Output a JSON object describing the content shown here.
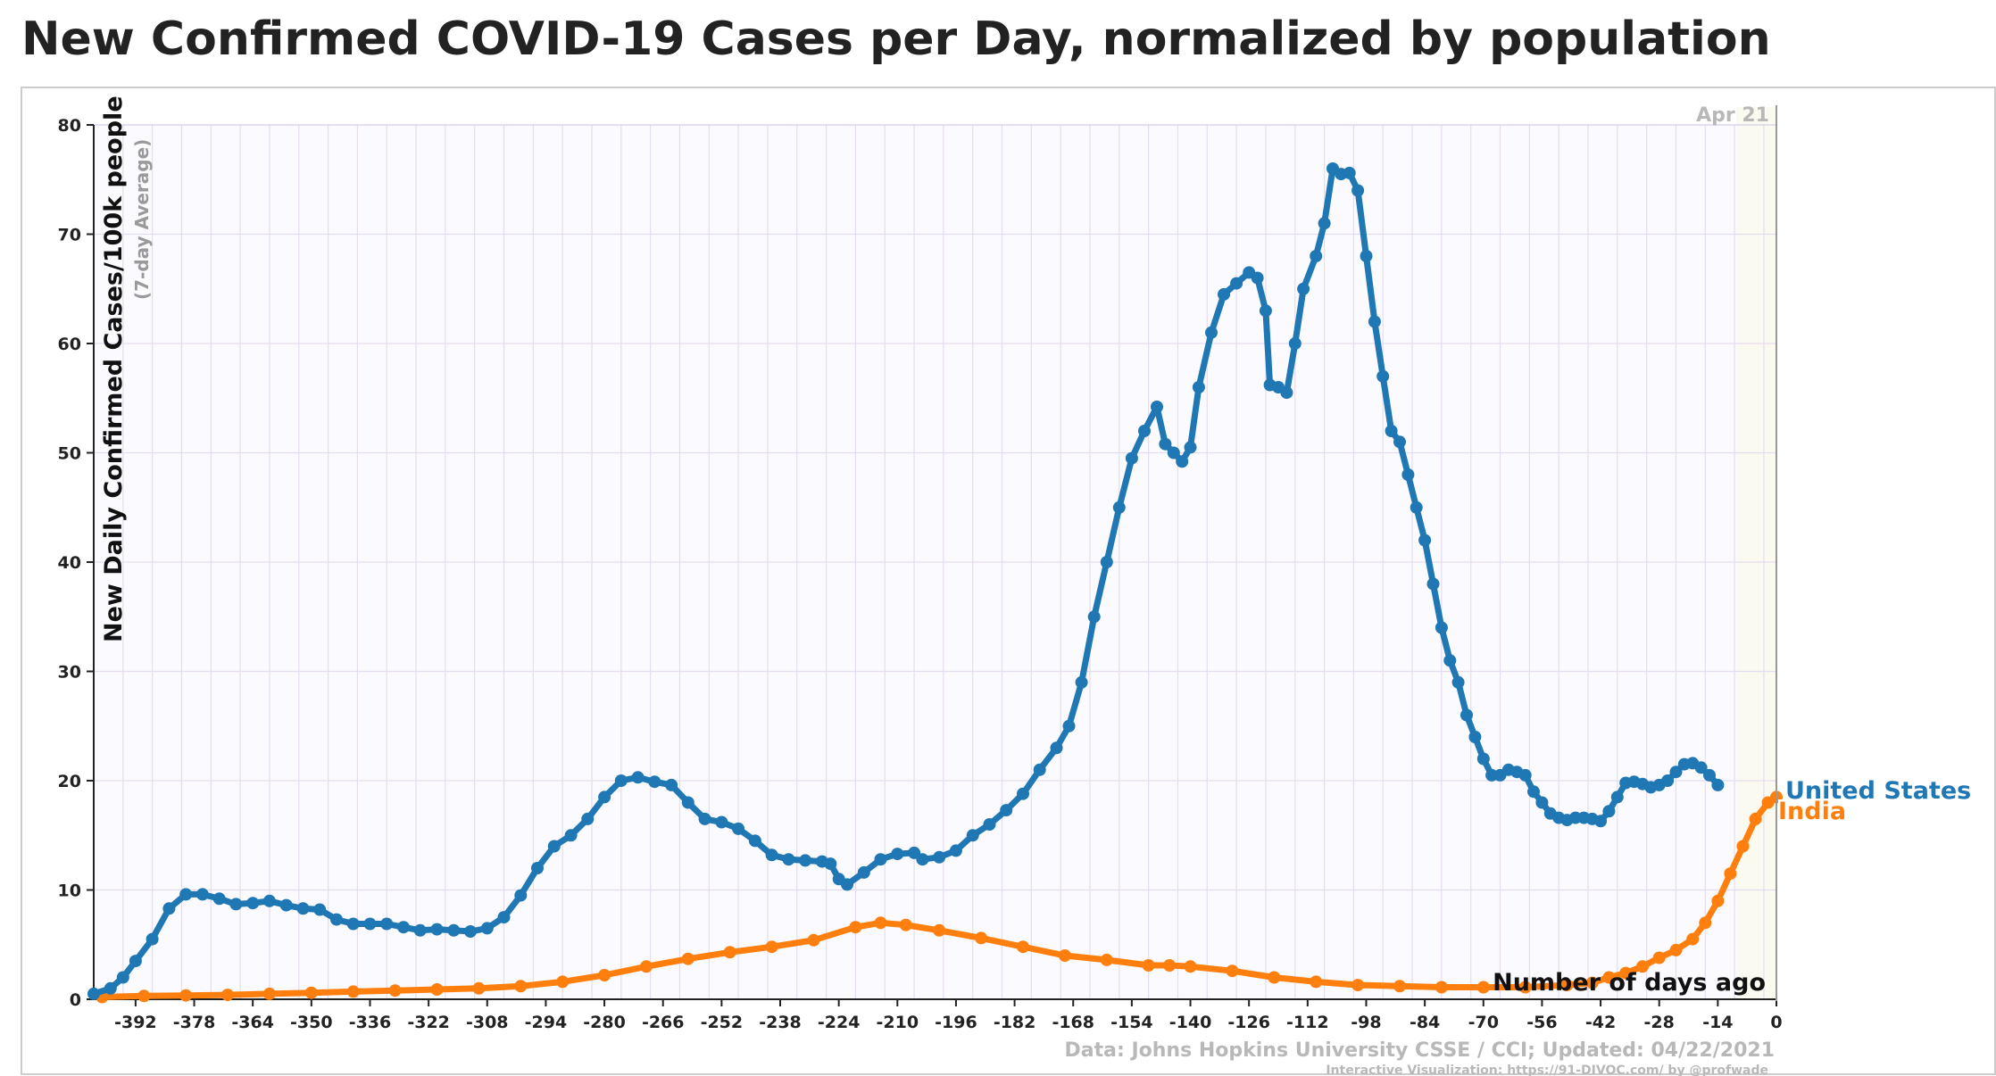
{
  "chart_data": {
    "type": "line",
    "title": "New Confirmed COVID-19 Cases per Day, normalized by population",
    "ylabel": "New Daily Confirmed Cases/100k people",
    "ylabel_sub": "(7-day Average)",
    "xlabel": "Number of days ago",
    "date_label": "Apr 21",
    "source": "Data: Johns Hopkins University CSSE / CCI; Updated: 04/22/2021",
    "credit": "Interactive Visualization: https://91-DIVOC.com/ by @profwade_",
    "xlim": [
      -402,
      0
    ],
    "ylim": [
      0,
      80
    ],
    "x_ticks": [
      -392,
      -378,
      -364,
      -350,
      -336,
      -322,
      -308,
      -294,
      -280,
      -266,
      -252,
      -238,
      -224,
      -210,
      -196,
      -182,
      -168,
      -154,
      -140,
      -126,
      -112,
      -98,
      -84,
      -70,
      -56,
      -42,
      -28,
      -14,
      0
    ],
    "y_ticks": [
      0,
      10,
      20,
      30,
      40,
      50,
      60,
      70,
      80
    ],
    "grid": true,
    "series": [
      {
        "name": "United States",
        "color": "#1f77b4",
        "points": [
          [
            -402,
            0.5
          ],
          [
            -398,
            1
          ],
          [
            -395,
            2
          ],
          [
            -392,
            3.5
          ],
          [
            -388,
            5.5
          ],
          [
            -384,
            8.3
          ],
          [
            -380,
            9.6
          ],
          [
            -376,
            9.6
          ],
          [
            -372,
            9.2
          ],
          [
            -368,
            8.7
          ],
          [
            -364,
            8.8
          ],
          [
            -360,
            9
          ],
          [
            -356,
            8.6
          ],
          [
            -352,
            8.3
          ],
          [
            -348,
            8.2
          ],
          [
            -344,
            7.3
          ],
          [
            -340,
            6.9
          ],
          [
            -336,
            6.9
          ],
          [
            -332,
            6.9
          ],
          [
            -328,
            6.6
          ],
          [
            -324,
            6.3
          ],
          [
            -320,
            6.4
          ],
          [
            -316,
            6.3
          ],
          [
            -312,
            6.2
          ],
          [
            -308,
            6.5
          ],
          [
            -304,
            7.5
          ],
          [
            -300,
            9.5
          ],
          [
            -296,
            12
          ],
          [
            -292,
            14
          ],
          [
            -288,
            15
          ],
          [
            -284,
            16.5
          ],
          [
            -280,
            18.5
          ],
          [
            -276,
            20
          ],
          [
            -272,
            20.3
          ],
          [
            -268,
            19.9
          ],
          [
            -264,
            19.6
          ],
          [
            -260,
            18
          ],
          [
            -256,
            16.5
          ],
          [
            -252,
            16.2
          ],
          [
            -248,
            15.6
          ],
          [
            -244,
            14.5
          ],
          [
            -240,
            13.2
          ],
          [
            -236,
            12.8
          ],
          [
            -232,
            12.7
          ],
          [
            -228,
            12.6
          ],
          [
            -226,
            12.4
          ],
          [
            -224,
            11
          ],
          [
            -222,
            10.5
          ],
          [
            -218,
            11.6
          ],
          [
            -214,
            12.8
          ],
          [
            -210,
            13.3
          ],
          [
            -206,
            13.4
          ],
          [
            -204,
            12.8
          ],
          [
            -200,
            13
          ],
          [
            -196,
            13.6
          ],
          [
            -192,
            15
          ],
          [
            -188,
            16
          ],
          [
            -184,
            17.3
          ],
          [
            -180,
            18.8
          ],
          [
            -176,
            21
          ],
          [
            -172,
            23
          ],
          [
            -169,
            25
          ],
          [
            -166,
            29
          ],
          [
            -163,
            35
          ],
          [
            -160,
            40
          ],
          [
            -157,
            45
          ],
          [
            -154,
            49.5
          ],
          [
            -151,
            52
          ],
          [
            -148,
            54.2
          ],
          [
            -146,
            50.8
          ],
          [
            -144,
            50
          ],
          [
            -142,
            49.2
          ],
          [
            -140,
            50.5
          ],
          [
            -138,
            56
          ],
          [
            -135,
            61
          ],
          [
            -132,
            64.5
          ],
          [
            -129,
            65.5
          ],
          [
            -126,
            66.5
          ],
          [
            -124,
            66
          ],
          [
            -122,
            63
          ],
          [
            -121,
            56.2
          ],
          [
            -119,
            56
          ],
          [
            -117,
            55.5
          ],
          [
            -115,
            60
          ],
          [
            -113,
            65
          ],
          [
            -110,
            68
          ],
          [
            -108,
            71
          ],
          [
            -106,
            76
          ],
          [
            -104,
            75.5
          ],
          [
            -102,
            75.6
          ],
          [
            -100,
            74
          ],
          [
            -98,
            68
          ],
          [
            -96,
            62
          ],
          [
            -94,
            57
          ],
          [
            -92,
            52
          ],
          [
            -90,
            51
          ],
          [
            -88,
            48
          ],
          [
            -86,
            45
          ],
          [
            -84,
            42
          ],
          [
            -82,
            38
          ],
          [
            -80,
            34
          ],
          [
            -78,
            31
          ],
          [
            -76,
            29
          ],
          [
            -74,
            26
          ],
          [
            -72,
            24
          ],
          [
            -70,
            22
          ],
          [
            -68,
            20.5
          ],
          [
            -66,
            20.5
          ],
          [
            -64,
            21
          ],
          [
            -62,
            20.8
          ],
          [
            -60,
            20.5
          ],
          [
            -58,
            19
          ],
          [
            -56,
            18
          ],
          [
            -54,
            17
          ],
          [
            -52,
            16.6
          ],
          [
            -50,
            16.4
          ],
          [
            -48,
            16.6
          ],
          [
            -46,
            16.6
          ],
          [
            -44,
            16.5
          ],
          [
            -42,
            16.3
          ],
          [
            -40,
            17.2
          ],
          [
            -38,
            18.5
          ],
          [
            -36,
            19.8
          ],
          [
            -34,
            19.9
          ],
          [
            -32,
            19.7
          ],
          [
            -30,
            19.4
          ],
          [
            -28,
            19.6
          ],
          [
            -26,
            20
          ],
          [
            -24,
            20.8
          ],
          [
            -22,
            21.5
          ],
          [
            -20,
            21.6
          ],
          [
            -18,
            21.2
          ],
          [
            -16,
            20.5
          ],
          [
            -14,
            19.6
          ]
        ]
      },
      {
        "name": "India",
        "color": "#ff7f0e",
        "points": [
          [
            -400,
            0.2
          ],
          [
            -390,
            0.3
          ],
          [
            -380,
            0.35
          ],
          [
            -370,
            0.4
          ],
          [
            -360,
            0.5
          ],
          [
            -350,
            0.6
          ],
          [
            -340,
            0.7
          ],
          [
            -330,
            0.8
          ],
          [
            -320,
            0.9
          ],
          [
            -310,
            1.0
          ],
          [
            -300,
            1.2
          ],
          [
            -290,
            1.6
          ],
          [
            -280,
            2.2
          ],
          [
            -270,
            3.0
          ],
          [
            -260,
            3.7
          ],
          [
            -250,
            4.3
          ],
          [
            -240,
            4.8
          ],
          [
            -230,
            5.4
          ],
          [
            -220,
            6.6
          ],
          [
            -214,
            7.0
          ],
          [
            -208,
            6.8
          ],
          [
            -200,
            6.3
          ],
          [
            -190,
            5.6
          ],
          [
            -180,
            4.8
          ],
          [
            -170,
            4.0
          ],
          [
            -160,
            3.6
          ],
          [
            -150,
            3.1
          ],
          [
            -145,
            3.1
          ],
          [
            -140,
            3.0
          ],
          [
            -130,
            2.6
          ],
          [
            -120,
            2.0
          ],
          [
            -110,
            1.6
          ],
          [
            -100,
            1.3
          ],
          [
            -90,
            1.2
          ],
          [
            -80,
            1.1
          ],
          [
            -70,
            1.1
          ],
          [
            -60,
            1.1
          ],
          [
            -50,
            1.3
          ],
          [
            -44,
            1.5
          ],
          [
            -40,
            2.0
          ],
          [
            -36,
            2.4
          ],
          [
            -32,
            3.0
          ],
          [
            -28,
            3.8
          ],
          [
            -24,
            4.5
          ],
          [
            -20,
            5.5
          ],
          [
            -17,
            7.0
          ],
          [
            -14,
            9.0
          ],
          [
            -11,
            11.5
          ],
          [
            -8,
            14.0
          ],
          [
            -5,
            16.5
          ],
          [
            -2,
            18.0
          ],
          [
            0,
            18.5
          ]
        ]
      }
    ]
  }
}
